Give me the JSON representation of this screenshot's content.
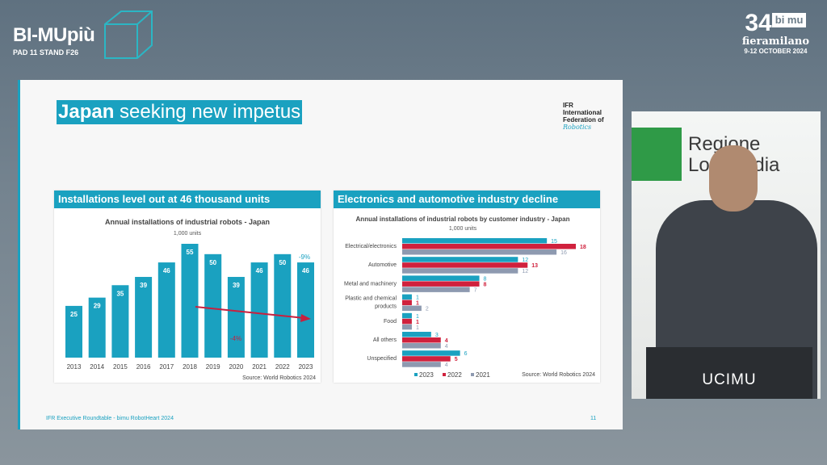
{
  "header": {
    "brand": "BI-MUpiù",
    "stand": "PAD 11 STAND F26",
    "event_number": "34",
    "event_logo": "bi mu",
    "venue": "fieramilano",
    "dates": "9-12 OCTOBER 2024"
  },
  "slide": {
    "title_bold": "Japan",
    "title_rest": " seeking new impetus",
    "ifr_logo": [
      "IFR",
      "International",
      "Federation of",
      "Robotics"
    ],
    "footer": "IFR Executive Roundtable - bimu RobotHeart 2024",
    "page": "11"
  },
  "video": {
    "sign_line1": "Regione",
    "sign_line2": "Lombardia",
    "podium": "UCIMU"
  },
  "chart_data": [
    {
      "type": "bar",
      "panel_title": "Installations level out at 46 thousand units",
      "title": "Annual installations of industrial robots  - Japan",
      "subtitle": "1,000 units",
      "categories": [
        "2013",
        "2014",
        "2015",
        "2016",
        "2017",
        "2018",
        "2019",
        "2020",
        "2021",
        "2022",
        "2023"
      ],
      "values": [
        25,
        29,
        35,
        39,
        46,
        55,
        50,
        39,
        46,
        50,
        46
      ],
      "annotations": [
        "-9%",
        "-4%"
      ],
      "source": "Source: World Robotics 2024",
      "color": "#1aa1c0",
      "ylim": [
        0,
        60
      ]
    },
    {
      "type": "bar",
      "orientation": "horizontal",
      "panel_title": "Electronics and automotive industry decline",
      "title": "Annual installations of industrial robots by customer industry - Japan",
      "subtitle": "1,000 units",
      "categories": [
        "Electrical/electronics",
        "Automotive",
        "Metal and machinery",
        "Plastic and chemical products",
        "Food",
        "All others",
        "Unspecified"
      ],
      "series": [
        {
          "name": "2023",
          "color": "#1aa1c0",
          "values": [
            15,
            12,
            8,
            1,
            1,
            3,
            6
          ]
        },
        {
          "name": "2022",
          "color": "#d0213d",
          "values": [
            18,
            13,
            8,
            1,
            1,
            4,
            5
          ]
        },
        {
          "name": "2021",
          "color": "#8e9ab0",
          "values": [
            16,
            12,
            7,
            2,
            1,
            4,
            4
          ]
        }
      ],
      "source": "Source: World Robotics 2024",
      "xlim": [
        0,
        18
      ]
    }
  ]
}
